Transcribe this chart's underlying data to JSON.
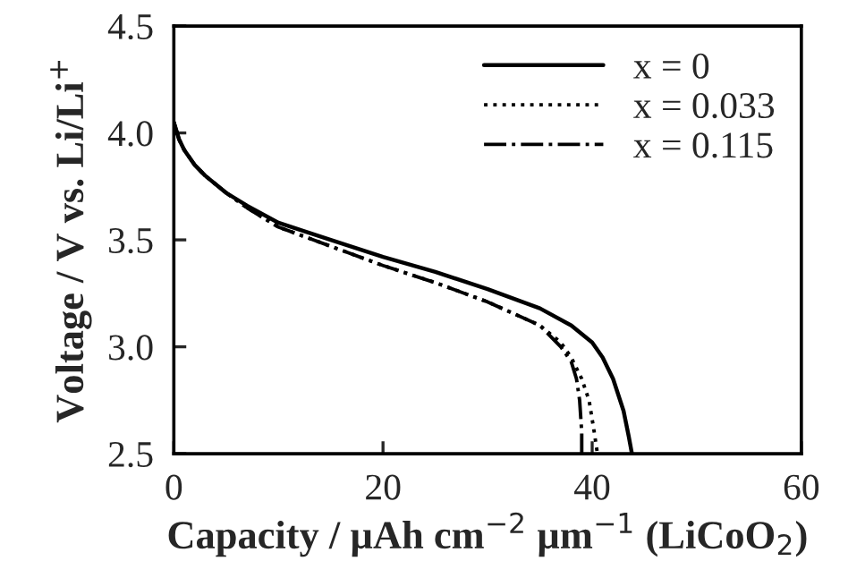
{
  "chart_data": {
    "type": "line",
    "xlabel": "Capacity / µAh cm$^{−2}$ µm$^{−1}$ (LiCoO$_{2}$)",
    "ylabel": "Voltage / V vs. Li/Li$^{+}$",
    "xlim": [
      0,
      60
    ],
    "xticks": [
      0,
      20,
      40,
      60
    ],
    "ylim": [
      2.5,
      4.5
    ],
    "yticks": [
      {
        "value": 2.5,
        "label": "2.5"
      },
      {
        "value": 3.0,
        "label": "3.0"
      },
      {
        "value": 3.5,
        "label": "3.5"
      },
      {
        "value": 4.0,
        "label": "4.0"
      },
      {
        "value": 4.5,
        "label": "4.5"
      }
    ],
    "grid": false,
    "legend": "top right",
    "marker": "none",
    "series": [
      {
        "name": "x = 0",
        "color": "#000000",
        "line_style": "solid",
        "x": [
          0,
          0.5,
          1,
          2,
          3,
          5,
          7,
          10,
          15,
          20,
          25,
          30,
          35,
          38,
          40,
          41,
          42,
          43,
          43.5,
          43.8
        ],
        "values": [
          4.05,
          3.97,
          3.92,
          3.85,
          3.8,
          3.72,
          3.66,
          3.58,
          3.5,
          3.42,
          3.35,
          3.27,
          3.18,
          3.1,
          3.02,
          2.95,
          2.85,
          2.7,
          2.58,
          2.5
        ]
      },
      {
        "name": "x = 0.033",
        "color": "#000000",
        "line_style": "dotted",
        "x": [
          0,
          0.5,
          1,
          2,
          3,
          5,
          7,
          10,
          15,
          20,
          25,
          30,
          35,
          37,
          38,
          39,
          39.7,
          40.2,
          40.5
        ],
        "values": [
          4.05,
          3.97,
          3.92,
          3.85,
          3.8,
          3.72,
          3.65,
          3.56,
          3.47,
          3.38,
          3.3,
          3.21,
          3.1,
          3.02,
          2.95,
          2.85,
          2.75,
          2.6,
          2.5
        ]
      },
      {
        "name": "x = 0.115",
        "color": "#000000",
        "line_style": "dashdot",
        "x": [
          0,
          0.5,
          1,
          2,
          3,
          5,
          7,
          10,
          15,
          20,
          25,
          30,
          35,
          37,
          38,
          38.5,
          38.8,
          39,
          39
        ],
        "values": [
          4.05,
          3.97,
          3.92,
          3.85,
          3.8,
          3.72,
          3.65,
          3.56,
          3.47,
          3.38,
          3.3,
          3.21,
          3.1,
          3.0,
          2.93,
          2.85,
          2.75,
          2.6,
          2.5
        ]
      }
    ]
  }
}
